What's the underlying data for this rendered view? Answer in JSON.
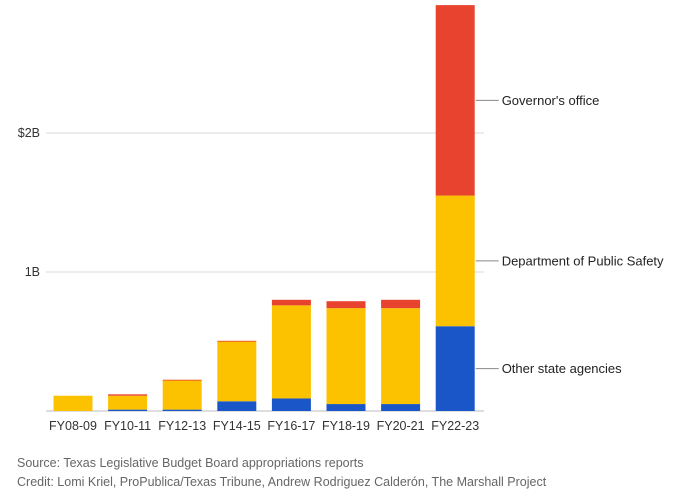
{
  "chart_data": {
    "type": "bar",
    "stacked": true,
    "categories": [
      "FY08-09",
      "FY10-11",
      "FY12-13",
      "FY14-15",
      "FY16-17",
      "FY18-19",
      "FY20-21",
      "FY22-23"
    ],
    "series": [
      {
        "name": "Other state agencies",
        "color": "#1a56c8",
        "values": [
          0.0,
          0.01,
          0.01,
          0.07,
          0.09,
          0.05,
          0.05,
          0.61
        ]
      },
      {
        "name": "Department of Public Safety",
        "color": "#fcc200",
        "values": [
          0.11,
          0.1,
          0.21,
          0.43,
          0.67,
          0.69,
          0.69,
          0.94
        ]
      },
      {
        "name": "Governor's office",
        "color": "#e8432e",
        "values": [
          0.0,
          0.01,
          0.005,
          0.005,
          0.04,
          0.05,
          0.06,
          1.37
        ]
      }
    ],
    "yticks": [
      {
        "value": 1,
        "label": "1B"
      },
      {
        "value": 2,
        "label": "$2B"
      }
    ],
    "ylim": [
      0,
      2.92
    ],
    "grid": true,
    "legend": "right, labels beside last bar"
  },
  "footer": {
    "source": "Source: Texas Legislative Budget Board appropriations reports",
    "credit": "Credit: Lomi Kriel, ProPublica/Texas Tribune, Andrew Rodriguez Calderón, The Marshall Project"
  }
}
